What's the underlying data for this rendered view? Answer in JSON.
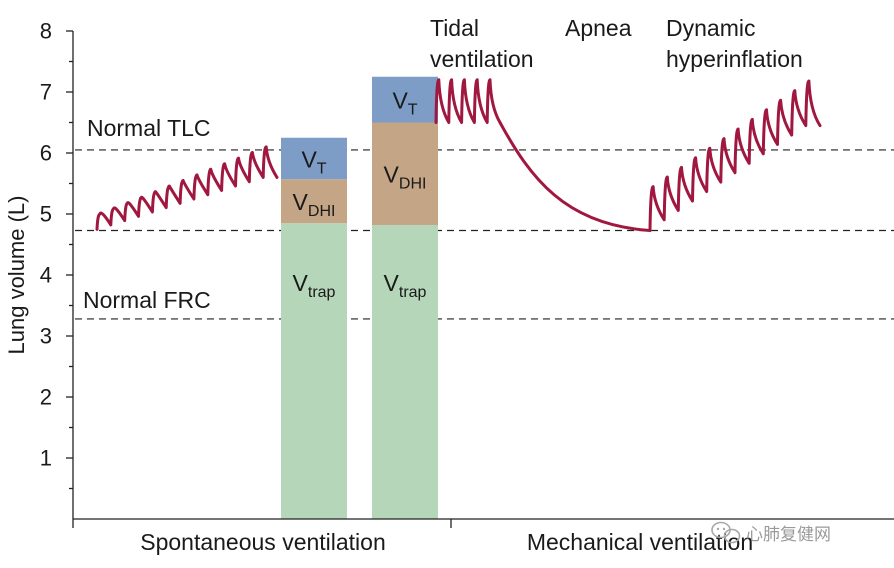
{
  "chart_data": {
    "type": "bar",
    "ylabel": "Lung volume (L)",
    "ylim": [
      0,
      8
    ],
    "yticks": [
      "1",
      "2",
      "3",
      "4",
      "5",
      "6",
      "7",
      "8"
    ],
    "sections": [
      "Spontaneous ventilation",
      "Mechanical ventilation"
    ],
    "reference_lines": [
      {
        "label": "Normal TLC",
        "value": 6.05
      },
      {
        "label": "",
        "value": 4.73
      },
      {
        "label": "Normal FRC",
        "value": 3.28
      }
    ],
    "bars": [
      {
        "segments": [
          {
            "name": "V",
            "sub": "trap",
            "from": 0,
            "to": 4.85,
            "color": "#b5d6b8"
          },
          {
            "name": "V",
            "sub": "DHI",
            "from": 4.85,
            "to": 5.57,
            "color": "#c4a585"
          },
          {
            "name": "V",
            "sub": "T",
            "from": 5.57,
            "to": 6.25,
            "color": "#7d9dc6"
          }
        ]
      },
      {
        "segments": [
          {
            "name": "V",
            "sub": "trap",
            "from": 0,
            "to": 4.82,
            "color": "#b5d6b8"
          },
          {
            "name": "V",
            "sub": "DHI",
            "from": 4.82,
            "to": 6.5,
            "color": "#c4a585"
          },
          {
            "name": "V",
            "sub": "T",
            "from": 6.5,
            "to": 7.25,
            "color": "#7d9dc6"
          }
        ]
      }
    ],
    "annotations": [
      "Tidal",
      "ventilation",
      "Apnea",
      "Dynamic",
      "hyperinflation"
    ],
    "trace_color": "#a0183f"
  },
  "watermark": {
    "text": "心肺复健网"
  }
}
